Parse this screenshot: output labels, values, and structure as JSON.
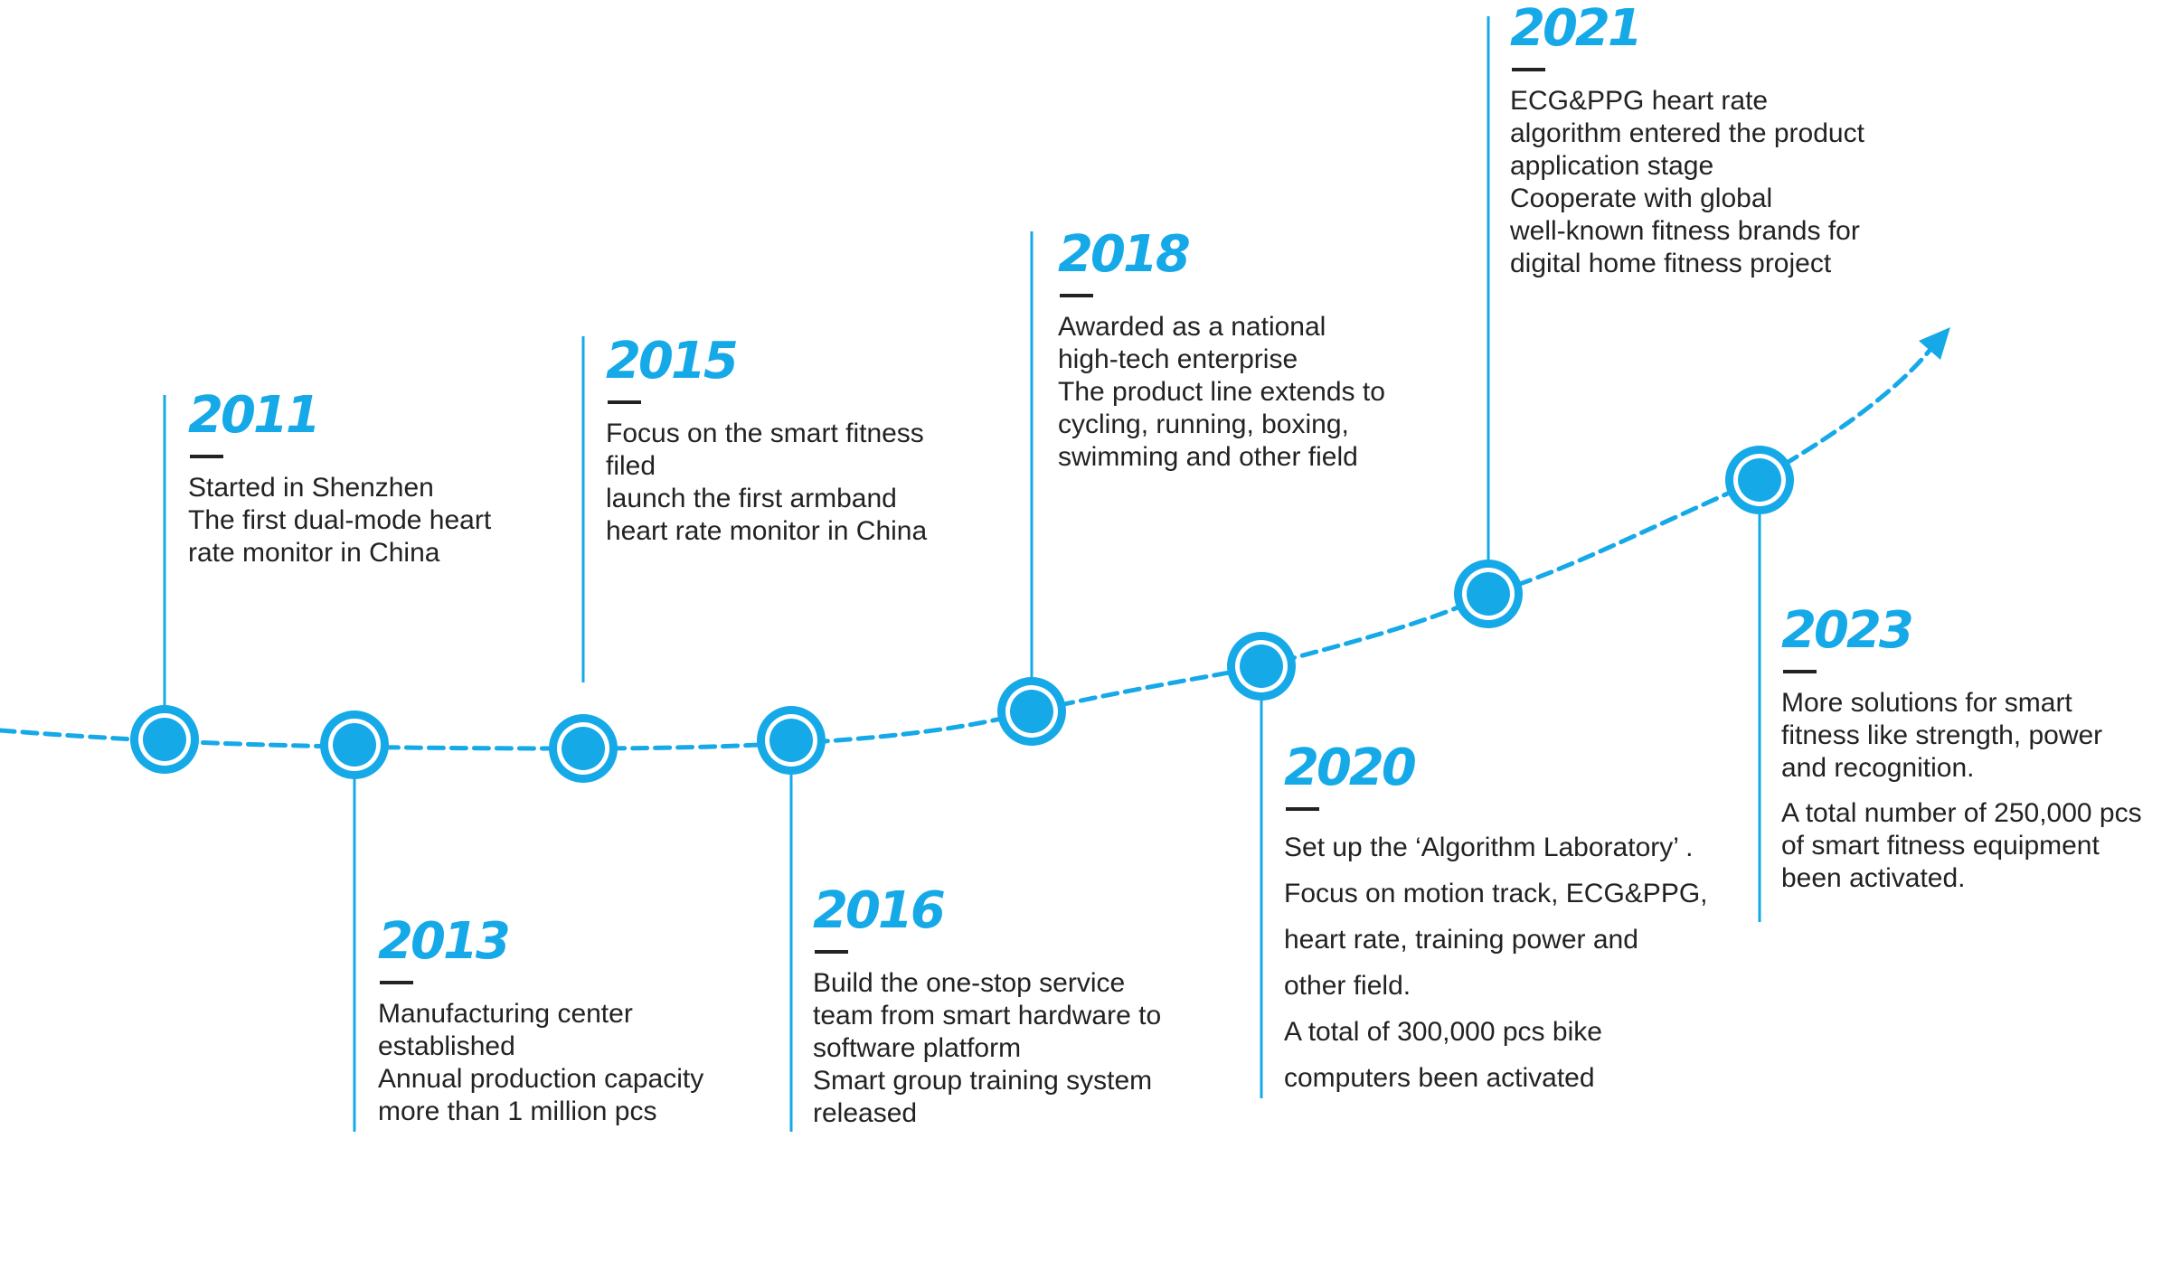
{
  "colors": {
    "accent": "#16a9e8",
    "text": "#222222",
    "dash": "#222222",
    "background": "#ffffff"
  },
  "milestones": [
    {
      "year": "2011",
      "lines": [
        "Started in Shenzhen",
        "The first dual-mode heart",
        "rate monitor in China"
      ]
    },
    {
      "year": "2013",
      "lines": [
        "Manufacturing center",
        "established",
        "Annual production capacity",
        "more than 1 million pcs"
      ]
    },
    {
      "year": "2015",
      "lines": [
        "Focus on the smart fitness",
        "filed",
        "launch the first armband",
        "heart rate monitor in China"
      ]
    },
    {
      "year": "2016",
      "lines": [
        "Build the one-stop service",
        "team from smart hardware to",
        "software platform",
        "Smart group training system",
        "released"
      ]
    },
    {
      "year": "2018",
      "lines": [
        "Awarded as a national",
        "high-tech enterprise",
        "The product line extends to",
        "cycling, running, boxing,",
        "swimming and other field"
      ]
    },
    {
      "year": "2020",
      "lines": [
        "Set up the ‘Algorithm Laboratory’ .",
        "Focus on motion track, ECG&PPG,",
        "heart rate, training power and",
        "other field.",
        "A total of 300,000 pcs bike",
        "computers been activated"
      ]
    },
    {
      "year": "2021",
      "lines": [
        "ECG&PPG heart rate",
        "algorithm entered the product",
        "application stage",
        "Cooperate with global",
        "well-known fitness brands for",
        "digital home fitness project"
      ]
    },
    {
      "year": "2023",
      "lines": [
        "More solutions for smart",
        "fitness like strength, power",
        "and recognition.",
        "A total number of 250,000 pcs",
        "of smart fitness equipment",
        "been activated."
      ]
    }
  ]
}
